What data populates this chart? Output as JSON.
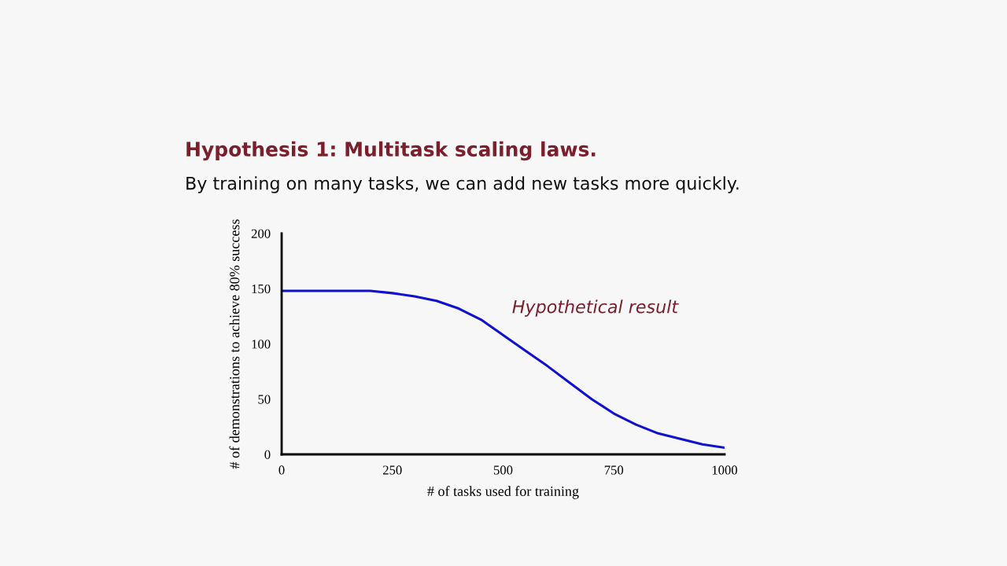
{
  "chart_data": {
    "type": "line",
    "title": "Hypothesis 1: Multitask scaling laws.",
    "subtitle": "By training on many tasks, we can add new tasks more quickly.",
    "xlabel": "# of tasks used for training",
    "ylabel": "# of demonstrations to achieve 80% success",
    "x": [
      0,
      100,
      200,
      250,
      300,
      350,
      400,
      450,
      500,
      550,
      600,
      650,
      700,
      750,
      800,
      850,
      900,
      950,
      1000
    ],
    "series": [
      {
        "name": "Hypothetical result",
        "color": "#1010d0",
        "values": [
          148,
          148,
          148,
          146,
          143,
          139,
          132,
          122,
          108,
          94,
          80,
          65,
          50,
          37,
          27,
          19,
          14,
          9,
          6
        ]
      }
    ],
    "xlim": [
      0,
      1000
    ],
    "xticks": [
      0,
      250,
      500,
      750,
      1000
    ],
    "ylim": [
      0,
      200
    ],
    "yticks": [
      0,
      50,
      100,
      150,
      200
    ],
    "grid": false,
    "legend": false,
    "marker": "none",
    "line_style": "solid"
  }
}
